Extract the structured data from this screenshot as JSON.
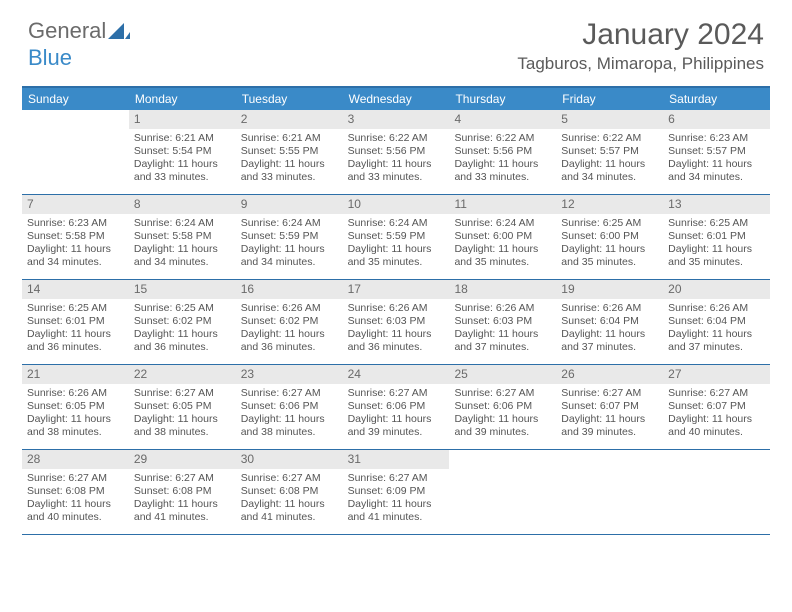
{
  "logo": {
    "general": "General",
    "blue": "Blue"
  },
  "header": {
    "month_title": "January 2024",
    "location": "Tagburos, Mimaropa, Philippines"
  },
  "colors": {
    "header_bar": "#3a8ac8",
    "rule": "#2d6fa8",
    "daynum_bg": "#e9e9e9",
    "text": "#555555",
    "title_text": "#5a5a5a"
  },
  "day_headers": [
    "Sunday",
    "Monday",
    "Tuesday",
    "Wednesday",
    "Thursday",
    "Friday",
    "Saturday"
  ],
  "weeks": [
    [
      {
        "day": "",
        "sunrise": "",
        "sunset": "",
        "daylight": ""
      },
      {
        "day": "1",
        "sunrise": "Sunrise: 6:21 AM",
        "sunset": "Sunset: 5:54 PM",
        "daylight": "Daylight: 11 hours and 33 minutes."
      },
      {
        "day": "2",
        "sunrise": "Sunrise: 6:21 AM",
        "sunset": "Sunset: 5:55 PM",
        "daylight": "Daylight: 11 hours and 33 minutes."
      },
      {
        "day": "3",
        "sunrise": "Sunrise: 6:22 AM",
        "sunset": "Sunset: 5:56 PM",
        "daylight": "Daylight: 11 hours and 33 minutes."
      },
      {
        "day": "4",
        "sunrise": "Sunrise: 6:22 AM",
        "sunset": "Sunset: 5:56 PM",
        "daylight": "Daylight: 11 hours and 33 minutes."
      },
      {
        "day": "5",
        "sunrise": "Sunrise: 6:22 AM",
        "sunset": "Sunset: 5:57 PM",
        "daylight": "Daylight: 11 hours and 34 minutes."
      },
      {
        "day": "6",
        "sunrise": "Sunrise: 6:23 AM",
        "sunset": "Sunset: 5:57 PM",
        "daylight": "Daylight: 11 hours and 34 minutes."
      }
    ],
    [
      {
        "day": "7",
        "sunrise": "Sunrise: 6:23 AM",
        "sunset": "Sunset: 5:58 PM",
        "daylight": "Daylight: 11 hours and 34 minutes."
      },
      {
        "day": "8",
        "sunrise": "Sunrise: 6:24 AM",
        "sunset": "Sunset: 5:58 PM",
        "daylight": "Daylight: 11 hours and 34 minutes."
      },
      {
        "day": "9",
        "sunrise": "Sunrise: 6:24 AM",
        "sunset": "Sunset: 5:59 PM",
        "daylight": "Daylight: 11 hours and 34 minutes."
      },
      {
        "day": "10",
        "sunrise": "Sunrise: 6:24 AM",
        "sunset": "Sunset: 5:59 PM",
        "daylight": "Daylight: 11 hours and 35 minutes."
      },
      {
        "day": "11",
        "sunrise": "Sunrise: 6:24 AM",
        "sunset": "Sunset: 6:00 PM",
        "daylight": "Daylight: 11 hours and 35 minutes."
      },
      {
        "day": "12",
        "sunrise": "Sunrise: 6:25 AM",
        "sunset": "Sunset: 6:00 PM",
        "daylight": "Daylight: 11 hours and 35 minutes."
      },
      {
        "day": "13",
        "sunrise": "Sunrise: 6:25 AM",
        "sunset": "Sunset: 6:01 PM",
        "daylight": "Daylight: 11 hours and 35 minutes."
      }
    ],
    [
      {
        "day": "14",
        "sunrise": "Sunrise: 6:25 AM",
        "sunset": "Sunset: 6:01 PM",
        "daylight": "Daylight: 11 hours and 36 minutes."
      },
      {
        "day": "15",
        "sunrise": "Sunrise: 6:25 AM",
        "sunset": "Sunset: 6:02 PM",
        "daylight": "Daylight: 11 hours and 36 minutes."
      },
      {
        "day": "16",
        "sunrise": "Sunrise: 6:26 AM",
        "sunset": "Sunset: 6:02 PM",
        "daylight": "Daylight: 11 hours and 36 minutes."
      },
      {
        "day": "17",
        "sunrise": "Sunrise: 6:26 AM",
        "sunset": "Sunset: 6:03 PM",
        "daylight": "Daylight: 11 hours and 36 minutes."
      },
      {
        "day": "18",
        "sunrise": "Sunrise: 6:26 AM",
        "sunset": "Sunset: 6:03 PM",
        "daylight": "Daylight: 11 hours and 37 minutes."
      },
      {
        "day": "19",
        "sunrise": "Sunrise: 6:26 AM",
        "sunset": "Sunset: 6:04 PM",
        "daylight": "Daylight: 11 hours and 37 minutes."
      },
      {
        "day": "20",
        "sunrise": "Sunrise: 6:26 AM",
        "sunset": "Sunset: 6:04 PM",
        "daylight": "Daylight: 11 hours and 37 minutes."
      }
    ],
    [
      {
        "day": "21",
        "sunrise": "Sunrise: 6:26 AM",
        "sunset": "Sunset: 6:05 PM",
        "daylight": "Daylight: 11 hours and 38 minutes."
      },
      {
        "day": "22",
        "sunrise": "Sunrise: 6:27 AM",
        "sunset": "Sunset: 6:05 PM",
        "daylight": "Daylight: 11 hours and 38 minutes."
      },
      {
        "day": "23",
        "sunrise": "Sunrise: 6:27 AM",
        "sunset": "Sunset: 6:06 PM",
        "daylight": "Daylight: 11 hours and 38 minutes."
      },
      {
        "day": "24",
        "sunrise": "Sunrise: 6:27 AM",
        "sunset": "Sunset: 6:06 PM",
        "daylight": "Daylight: 11 hours and 39 minutes."
      },
      {
        "day": "25",
        "sunrise": "Sunrise: 6:27 AM",
        "sunset": "Sunset: 6:06 PM",
        "daylight": "Daylight: 11 hours and 39 minutes."
      },
      {
        "day": "26",
        "sunrise": "Sunrise: 6:27 AM",
        "sunset": "Sunset: 6:07 PM",
        "daylight": "Daylight: 11 hours and 39 minutes."
      },
      {
        "day": "27",
        "sunrise": "Sunrise: 6:27 AM",
        "sunset": "Sunset: 6:07 PM",
        "daylight": "Daylight: 11 hours and 40 minutes."
      }
    ],
    [
      {
        "day": "28",
        "sunrise": "Sunrise: 6:27 AM",
        "sunset": "Sunset: 6:08 PM",
        "daylight": "Daylight: 11 hours and 40 minutes."
      },
      {
        "day": "29",
        "sunrise": "Sunrise: 6:27 AM",
        "sunset": "Sunset: 6:08 PM",
        "daylight": "Daylight: 11 hours and 41 minutes."
      },
      {
        "day": "30",
        "sunrise": "Sunrise: 6:27 AM",
        "sunset": "Sunset: 6:08 PM",
        "daylight": "Daylight: 11 hours and 41 minutes."
      },
      {
        "day": "31",
        "sunrise": "Sunrise: 6:27 AM",
        "sunset": "Sunset: 6:09 PM",
        "daylight": "Daylight: 11 hours and 41 minutes."
      },
      {
        "day": "",
        "sunrise": "",
        "sunset": "",
        "daylight": ""
      },
      {
        "day": "",
        "sunrise": "",
        "sunset": "",
        "daylight": ""
      },
      {
        "day": "",
        "sunrise": "",
        "sunset": "",
        "daylight": ""
      }
    ]
  ]
}
